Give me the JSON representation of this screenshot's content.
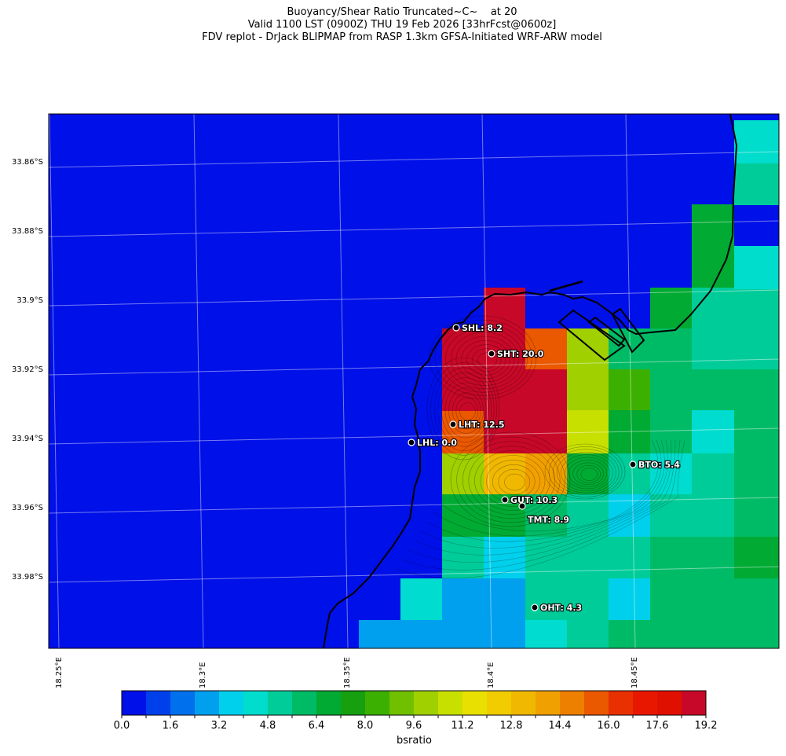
{
  "title": {
    "line1": "Buoyancy/Shear Ratio Truncated~C~    at 20",
    "line2": "Valid 1100 LST (0900Z) THU 19 Feb 2026 [33hrFcst@0600z]",
    "line3": "FDV replot - DrJack BLIPMAP from RASP 1.3km GFSA-Initiated WRF-ARW model"
  },
  "map": {
    "lat_labels": [
      "33.86°S",
      "33.88°S",
      "33.9°S",
      "33.92°S",
      "33.94°S",
      "33.96°S",
      "33.98°S"
    ],
    "lon_labels": [
      "18.25°E",
      "18.3°E",
      "18.35°E",
      "18.4°E",
      "18.45°E"
    ],
    "stations": [
      {
        "label": "SHL: 8.2",
        "name": "SHL",
        "value": 8.2
      },
      {
        "label": "SHT: 20.0",
        "name": "SHT",
        "value": 20.0
      },
      {
        "label": "LHT: 12.5",
        "name": "LHT",
        "value": 12.5
      },
      {
        "label": "LHL: 0.0",
        "name": "LHL",
        "value": 0.0
      },
      {
        "label": "BTO: 5.4",
        "name": "BTO",
        "value": 5.4
      },
      {
        "label": "GUT: 10.3",
        "name": "GUT",
        "value": 10.3
      },
      {
        "label": "TMT: 8.9",
        "name": "TMT",
        "value": 8.9
      },
      {
        "label": "OHT: 4.3",
        "name": "OHT",
        "value": 4.3
      }
    ]
  },
  "colorbar": {
    "label": "bsratio",
    "ticks": [
      "0.0",
      "1.6",
      "3.2",
      "4.8",
      "6.4",
      "8.0",
      "9.6",
      "11.2",
      "12.8",
      "14.4",
      "16.0",
      "17.6",
      "19.2"
    ],
    "colors": [
      "#0010e8",
      "#0040ea",
      "#0070ec",
      "#00a0ee",
      "#00d0ec",
      "#00ddcc",
      "#00cc99",
      "#00bb66",
      "#00aa33",
      "#16a010",
      "#3cb000",
      "#70c000",
      "#a0d000",
      "#c8e000",
      "#e8e000",
      "#f0cc00",
      "#f0b800",
      "#f0a000",
      "#ee8000",
      "#ea5800",
      "#e83000",
      "#e81800",
      "#e01000",
      "#c80828"
    ]
  },
  "grid_colors": {
    "c0": "#0010e8",
    "c1": "#00ddcc",
    "c2": "#00cc99",
    "c3": "#00bb66",
    "c4": "#00aa33",
    "c5": "#3cb000",
    "c6": "#a0d000",
    "c7": "#c8e000",
    "c8": "#f0b800",
    "c9": "#f0a000",
    "c10": "#ea5800",
    "c11": "#c80828",
    "c12": "#00a0ee",
    "c13": "#00d0ec",
    "c14": "#00dccf"
  }
}
